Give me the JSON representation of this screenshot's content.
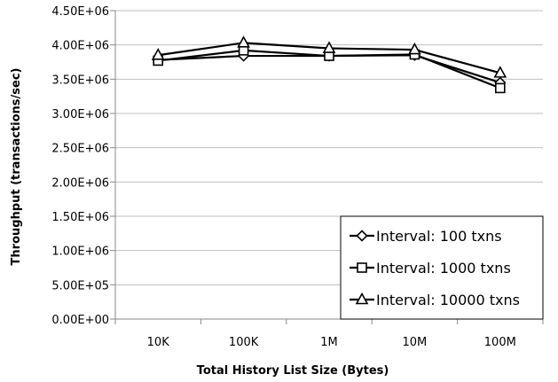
{
  "chart_data": {
    "type": "line",
    "title": "",
    "xlabel": "Total History List Size (Bytes)",
    "ylabel": "Throughput (transactions/sec)",
    "categories": [
      "10K",
      "100K",
      "1M",
      "10M",
      "100M"
    ],
    "ylim": [
      0,
      4500000
    ],
    "yticks": [
      0,
      500000,
      1000000,
      1500000,
      2000000,
      2500000,
      3000000,
      3500000,
      4000000,
      4500000
    ],
    "ytick_labels": [
      "0.00E+00",
      "5.00E+05",
      "1.00E+06",
      "1.50E+06",
      "2.00E+06",
      "2.50E+06",
      "3.00E+06",
      "3.50E+06",
      "4.00E+06",
      "4.50E+06"
    ],
    "grid": true,
    "legend_position": "bottom-right",
    "series": [
      {
        "name": "Interval: 100 txns",
        "marker": "diamond",
        "values": [
          3780000,
          3840000,
          3840000,
          3850000,
          3450000
        ]
      },
      {
        "name": "Interval: 1000 txns",
        "marker": "square",
        "values": [
          3770000,
          3920000,
          3840000,
          3860000,
          3370000
        ]
      },
      {
        "name": "Interval: 10000 txns",
        "marker": "triangle",
        "values": [
          3850000,
          4030000,
          3950000,
          3930000,
          3590000
        ]
      }
    ]
  }
}
